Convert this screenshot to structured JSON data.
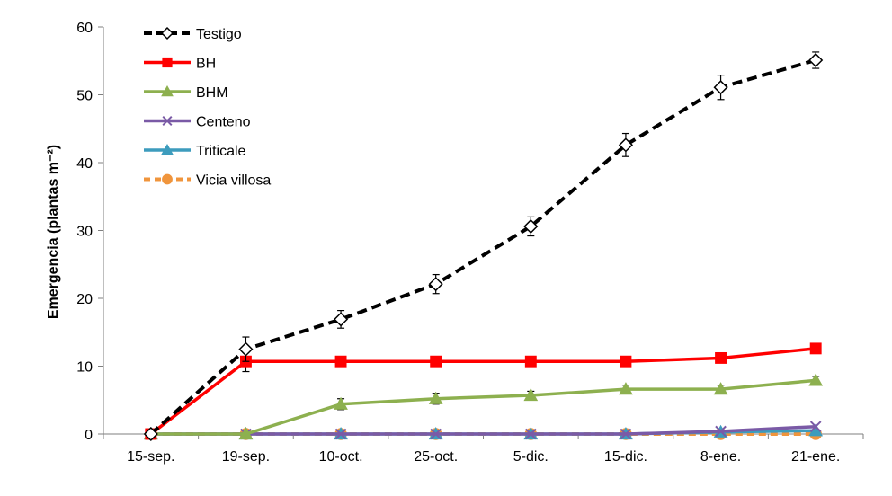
{
  "chart_data": {
    "type": "line",
    "title": "",
    "xlabel": "",
    "ylabel": "Emergencia (plantas m⁻²)",
    "categories": [
      "15-sep.",
      "19-sep.",
      "10-oct.",
      "25-oct.",
      "5-dic.",
      "15-dic.",
      "8-ene.",
      "21-ene."
    ],
    "ylim": [
      0,
      60
    ],
    "yticks": [
      0,
      10,
      20,
      30,
      40,
      50,
      60
    ],
    "grid": false,
    "legend_position": "top-left",
    "series": [
      {
        "name": "Testigo",
        "color": "#000000",
        "dash": true,
        "marker": "diamond-open",
        "values": [
          0,
          12.5,
          16.9,
          22.1,
          30.6,
          42.6,
          51.1,
          55.1
        ],
        "errors": [
          0,
          1.8,
          1.3,
          1.4,
          1.4,
          1.7,
          1.8,
          1.2
        ]
      },
      {
        "name": "BH",
        "color": "#ff0000",
        "dash": false,
        "marker": "square",
        "values": [
          0,
          10.7,
          10.7,
          10.7,
          10.7,
          10.7,
          11.2,
          12.6
        ],
        "errors": [
          0,
          1.5,
          0.4,
          0.4,
          0.4,
          0.4,
          0.4,
          0.6
        ]
      },
      {
        "name": "BHM",
        "color": "#8db04f",
        "dash": false,
        "marker": "triangle",
        "values": [
          0,
          0,
          4.4,
          5.2,
          5.7,
          6.6,
          6.6,
          7.9
        ],
        "errors": [
          0,
          0,
          0.8,
          0.8,
          0.6,
          0.6,
          0.6,
          0.6
        ]
      },
      {
        "name": "Centeno",
        "color": "#7a5aa6",
        "dash": false,
        "marker": "x",
        "values": [
          0,
          0,
          0,
          0,
          0,
          0,
          0.4,
          1.1
        ],
        "errors": [
          0,
          0,
          0,
          0,
          0,
          0,
          0,
          0
        ]
      },
      {
        "name": "Triticale",
        "color": "#3d9cbd",
        "dash": false,
        "marker": "triangle",
        "values": [
          0,
          0,
          0,
          0,
          0,
          0,
          0.3,
          0.5
        ],
        "errors": [
          0,
          0,
          0,
          0,
          0,
          0,
          0,
          0
        ]
      },
      {
        "name": "Vicia villosa",
        "color": "#f0953c",
        "dash": true,
        "marker": "circle",
        "values": [
          0,
          0,
          0,
          0,
          0,
          0,
          0,
          0
        ],
        "errors": [
          0,
          0,
          0,
          0,
          0,
          0,
          0,
          0
        ]
      }
    ]
  }
}
